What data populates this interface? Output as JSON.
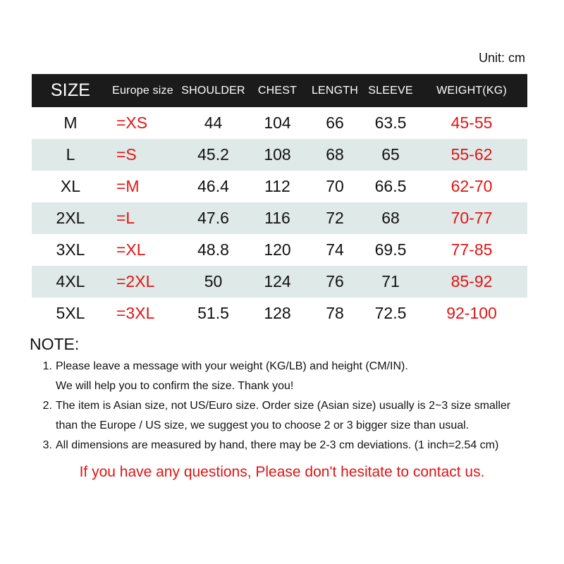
{
  "unit_label": "Unit: cm",
  "colors": {
    "header_bg": "#1b1b1b",
    "row_alt_bg": "#dfe9e8",
    "accent_red": "#e11414"
  },
  "table": {
    "headers": [
      "SIZE",
      "Europe size",
      "SHOULDER",
      "CHEST",
      "LENGTH",
      "SLEEVE",
      "WEIGHT(KG)"
    ],
    "column_keys": [
      "size",
      "europe-size",
      "shoulder",
      "chest",
      "length",
      "sleeve",
      "weight"
    ],
    "rows": [
      [
        "M",
        "=XS",
        "44",
        "104",
        "66",
        "63.5",
        "45-55"
      ],
      [
        "L",
        "=S",
        "45.2",
        "108",
        "68",
        "65",
        "55-62"
      ],
      [
        "XL",
        "=M",
        "46.4",
        "112",
        "70",
        "66.5",
        "62-70"
      ],
      [
        "2XL",
        "=L",
        "47.6",
        "116",
        "72",
        "68",
        "70-77"
      ],
      [
        "3XL",
        "=XL",
        "48.8",
        "120",
        "74",
        "69.5",
        "77-85"
      ],
      [
        "4XL",
        "=2XL",
        "50",
        "124",
        "76",
        "71",
        "85-92"
      ],
      [
        "5XL",
        "=3XL",
        "51.5",
        "128",
        "78",
        "72.5",
        "92-100"
      ]
    ]
  },
  "note": {
    "title": "NOTE:",
    "items": [
      {
        "number": "1.",
        "lines": [
          "Please leave a message with your weight (KG/LB) and height (CM/IN).",
          "We will help you to confirm the size. Thank you!"
        ]
      },
      {
        "number": "2.",
        "lines": [
          "The item is Asian size, not US/Euro size. Order size (Asian size) usually is  2~3 size smaller",
          "than the Europe / US size, we suggest you to choose 2 or 3 bigger size than usual."
        ]
      },
      {
        "number": "3.",
        "lines": [
          "All dimensions are measured by hand, there may be 2-3 cm deviations. (1 inch=2.54 cm)"
        ]
      }
    ]
  },
  "contact_message": "If you have any questions, Please don't hesitate to contact us."
}
